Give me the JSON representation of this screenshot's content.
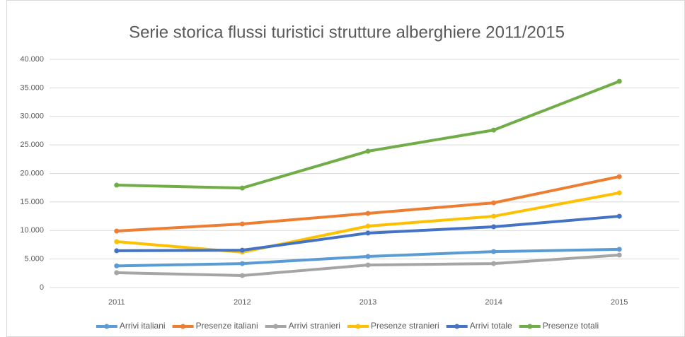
{
  "chart_data": {
    "type": "line",
    "title": "Serie storica flussi turistici strutture alberghiere 2011/2015",
    "categories": [
      "2011",
      "2012",
      "2013",
      "2014",
      "2015"
    ],
    "series": [
      {
        "name": "Arrivi italiani",
        "color": "#5b9bd5",
        "values": [
          3800,
          4200,
          5450,
          6300,
          6700
        ]
      },
      {
        "name": "Presenze italiani",
        "color": "#ed7d31",
        "values": [
          9900,
          11150,
          13000,
          14850,
          19450
        ]
      },
      {
        "name": "Arrivi stranieri",
        "color": "#a5a5a5",
        "values": [
          2600,
          2100,
          3950,
          4200,
          5700
        ]
      },
      {
        "name": "Presenze stranieri",
        "color": "#ffc000",
        "values": [
          8050,
          6200,
          10770,
          12500,
          16600
        ]
      },
      {
        "name": "Arrivi totale",
        "color": "#4472c4",
        "values": [
          6450,
          6550,
          9550,
          10650,
          12500
        ]
      },
      {
        "name": "Presenze totali",
        "color": "#70ad47",
        "values": [
          17950,
          17450,
          23900,
          27600,
          36150
        ]
      }
    ],
    "ylim": [
      0,
      40000
    ],
    "yticks": [
      0,
      {
        "value": 5000,
        "label": "5.000"
      },
      {
        "value": 10000,
        "label": "10.000"
      },
      {
        "value": 15000,
        "label": "15.000"
      },
      {
        "value": 20000,
        "label": "20.000"
      },
      {
        "value": 25000,
        "label": "25.000"
      },
      {
        "value": 30000,
        "label": "30.000"
      },
      {
        "value": 35000,
        "label": "35.000"
      },
      {
        "value": 40000,
        "label": "40.000"
      }
    ],
    "grid": true,
    "legend": "bottom"
  }
}
